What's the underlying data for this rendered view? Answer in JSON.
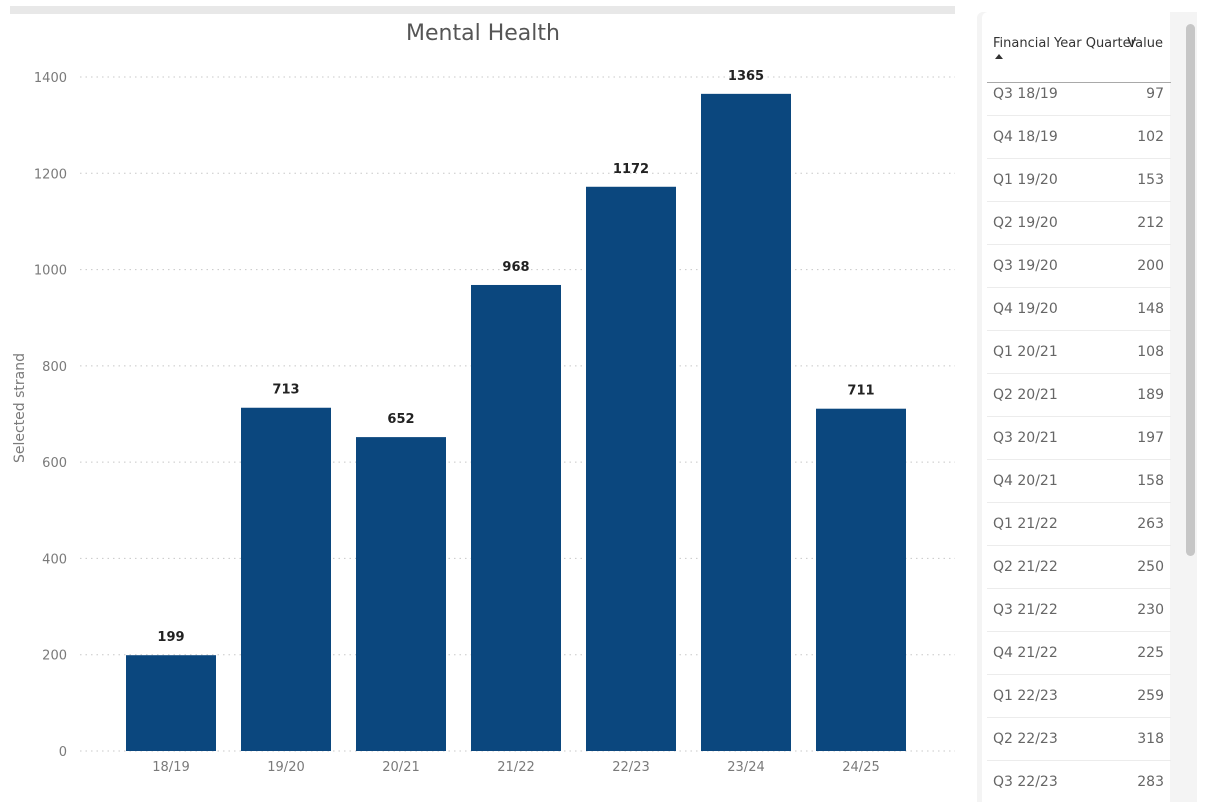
{
  "chart_data": {
    "type": "bar",
    "title": "Mental Health",
    "xlabel": "",
    "ylabel": "Selected strand",
    "categories": [
      "18/19",
      "19/20",
      "20/21",
      "21/22",
      "22/23",
      "23/24",
      "24/25"
    ],
    "values": [
      199,
      713,
      652,
      968,
      1172,
      1365,
      711
    ],
    "ylim": [
      0,
      1400
    ],
    "yticks": [
      0,
      200,
      400,
      600,
      800,
      1000,
      1200,
      1400
    ],
    "grid": true,
    "bar_color": "#0b477e",
    "data_labels": true
  },
  "table": {
    "headers": {
      "quarter": "Financial Year Quarter",
      "value": "Value"
    },
    "rows": [
      {
        "quarter": "Q3 18/19",
        "value": "97"
      },
      {
        "quarter": "Q4 18/19",
        "value": "102"
      },
      {
        "quarter": "Q1 19/20",
        "value": "153"
      },
      {
        "quarter": "Q2 19/20",
        "value": "212"
      },
      {
        "quarter": "Q3 19/20",
        "value": "200"
      },
      {
        "quarter": "Q4 19/20",
        "value": "148"
      },
      {
        "quarter": "Q1 20/21",
        "value": "108"
      },
      {
        "quarter": "Q2 20/21",
        "value": "189"
      },
      {
        "quarter": "Q3 20/21",
        "value": "197"
      },
      {
        "quarter": "Q4 20/21",
        "value": "158"
      },
      {
        "quarter": "Q1 21/22",
        "value": "263"
      },
      {
        "quarter": "Q2 21/22",
        "value": "250"
      },
      {
        "quarter": "Q3 21/22",
        "value": "230"
      },
      {
        "quarter": "Q4 21/22",
        "value": "225"
      },
      {
        "quarter": "Q1 22/23",
        "value": "259"
      },
      {
        "quarter": "Q2 22/23",
        "value": "318"
      },
      {
        "quarter": "Q3 22/23",
        "value": "283"
      }
    ]
  },
  "icons": {
    "sort": "sort-ascending-icon"
  }
}
